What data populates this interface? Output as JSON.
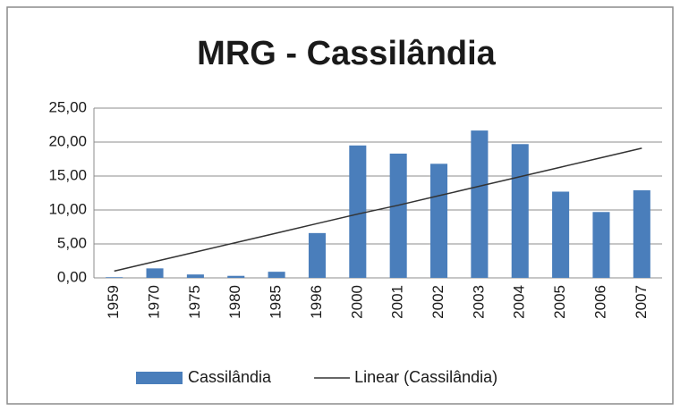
{
  "chart_data": {
    "type": "bar",
    "title": "MRG - Cassilândia",
    "categories": [
      "1959",
      "1970",
      "1975",
      "1980",
      "1985",
      "1996",
      "2000",
      "2001",
      "2002",
      "2003",
      "2004",
      "2005",
      "2006",
      "2007"
    ],
    "series": [
      {
        "name": "Cassilândia",
        "type": "bar",
        "color": "#4a7ebb",
        "values": [
          0.1,
          1.4,
          0.5,
          0.3,
          0.9,
          6.6,
          19.5,
          18.3,
          16.8,
          21.7,
          19.7,
          12.7,
          9.7,
          12.9
        ]
      },
      {
        "name": "Linear (Cassilândia)",
        "type": "line",
        "color": "#333333",
        "values": [
          1.0,
          2.4,
          3.8,
          5.2,
          6.6,
          8.0,
          9.4,
          10.7,
          12.1,
          13.5,
          14.9,
          16.3,
          17.7,
          19.1
        ]
      }
    ],
    "ylim": [
      0,
      25
    ],
    "yticks": [
      {
        "value": 0,
        "label": "0,00"
      },
      {
        "value": 5,
        "label": "5,00"
      },
      {
        "value": 10,
        "label": "10,00"
      },
      {
        "value": 15,
        "label": "15,00"
      },
      {
        "value": 20,
        "label": "20,00"
      },
      {
        "value": 25,
        "label": "25,00"
      }
    ],
    "grid": true
  }
}
